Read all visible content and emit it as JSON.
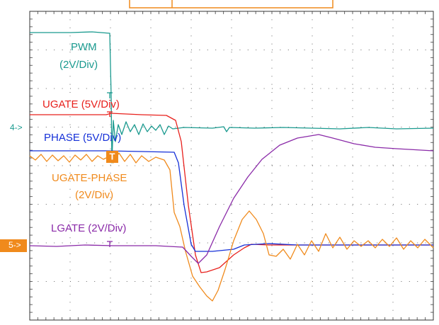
{
  "scope": {
    "labels": [
      {
        "text": "PWM",
        "color": "#1a9a8f"
      },
      {
        "text": "(2V/Div)",
        "color": "#1a9a8f"
      },
      {
        "text": "UGATE (5V/Div)",
        "color": "#e8201c"
      },
      {
        "text": "PHASE (5V/Div)",
        "color": "#1530d8"
      },
      {
        "text": "UGATE-PHASE",
        "color": "#f08a1c"
      },
      {
        "text": "(2V/Div)",
        "color": "#f08a1c"
      },
      {
        "text": "LGATE (2V/Div)",
        "color": "#8a2aa8"
      }
    ],
    "markers": {
      "ch4": "4->",
      "ch5": "5->",
      "trigger": "T"
    }
  }
}
